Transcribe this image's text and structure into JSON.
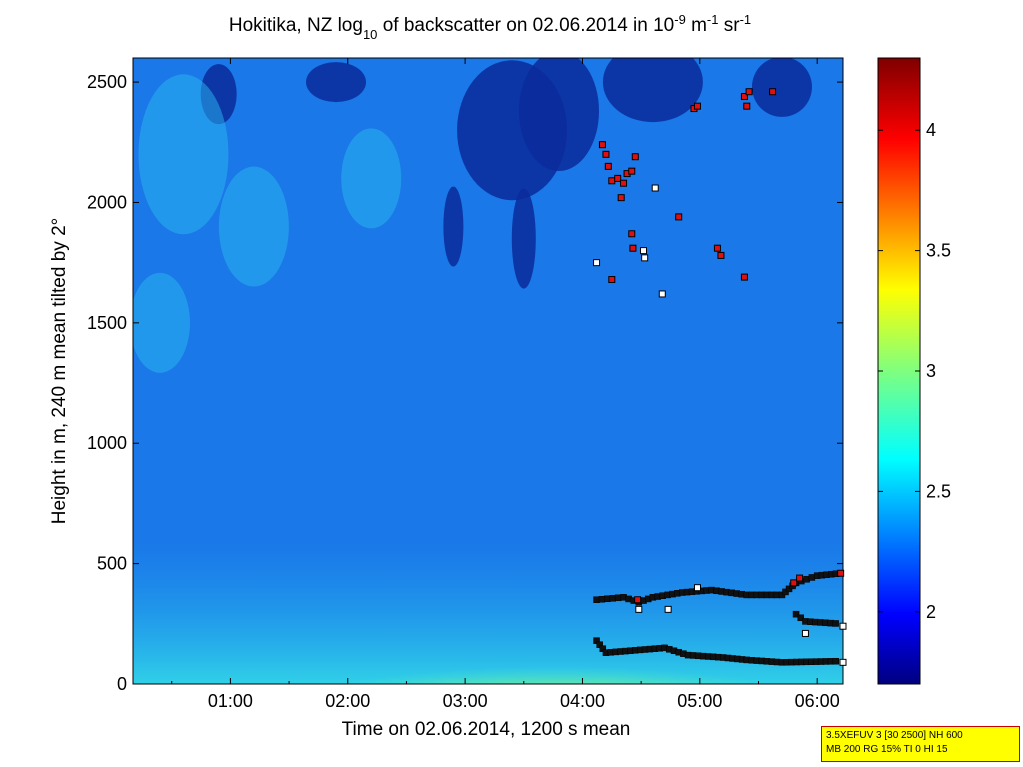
{
  "chart_data": {
    "type": "heatmap",
    "title": {
      "prefix": "Hokitika, NZ log",
      "sub": "10",
      "mid": " of backscatter on 02.06.2014 in 10",
      "sup1": "-9",
      "unit1": " m",
      "sup2": "-1",
      "unit2": " sr",
      "sup3": "-1"
    },
    "xlabel": "Time on 02.06.2014, 1200 s mean",
    "ylabel": "Height in m, 240 m mean tilted by 2°",
    "x_tick_labels": [
      "01:00",
      "02:00",
      "03:00",
      "04:00",
      "05:00",
      "06:00"
    ],
    "x_tick_hours": [
      1,
      2,
      3,
      4,
      5,
      6
    ],
    "xlim_hours": [
      0.17,
      6.22
    ],
    "y_ticks": [
      0,
      500,
      1000,
      1500,
      2000,
      2500
    ],
    "ylim": [
      0,
      2600
    ],
    "colorbar": {
      "ticks": [
        2,
        2.5,
        3,
        3.5,
        4
      ],
      "tick_labels": [
        "2",
        "2.5",
        "3",
        "3.5",
        "4"
      ],
      "range": [
        1.7,
        4.3
      ],
      "colormap": "jet"
    },
    "cloud_points_red": [
      [
        4.17,
        2240
      ],
      [
        4.2,
        2200
      ],
      [
        4.22,
        2150
      ],
      [
        4.25,
        2090
      ],
      [
        4.3,
        2100
      ],
      [
        4.33,
        2020
      ],
      [
        4.35,
        2080
      ],
      [
        4.38,
        2120
      ],
      [
        4.42,
        2130
      ],
      [
        4.45,
        2190
      ],
      [
        4.25,
        1680
      ],
      [
        4.42,
        1870
      ],
      [
        4.43,
        1810
      ],
      [
        4.82,
        1940
      ],
      [
        4.95,
        2390
      ],
      [
        4.98,
        2400
      ],
      [
        5.15,
        1810
      ],
      [
        5.18,
        1780
      ],
      [
        5.38,
        2440
      ],
      [
        5.4,
        2400
      ],
      [
        5.42,
        2460
      ],
      [
        5.38,
        1690
      ],
      [
        5.62,
        2460
      ],
      [
        4.47,
        350
      ],
      [
        5.8,
        420
      ],
      [
        5.85,
        440
      ],
      [
        6.2,
        460
      ]
    ],
    "cloud_points_white": [
      [
        4.12,
        1750
      ],
      [
        4.52,
        1800
      ],
      [
        4.53,
        1770
      ],
      [
        4.62,
        2060
      ],
      [
        4.68,
        1620
      ],
      [
        4.48,
        310
      ],
      [
        4.73,
        310
      ],
      [
        4.98,
        400
      ],
      [
        5.9,
        210
      ],
      [
        6.22,
        240
      ],
      [
        6.22,
        90
      ]
    ],
    "layer_tracks": [
      {
        "name": "upper-layer",
        "points": [
          [
            4.12,
            350
          ],
          [
            4.35,
            360
          ],
          [
            4.48,
            340
          ],
          [
            4.6,
            360
          ],
          [
            4.85,
            380
          ],
          [
            5.1,
            390
          ],
          [
            5.4,
            370
          ],
          [
            5.7,
            370
          ],
          [
            5.82,
            420
          ],
          [
            6.0,
            450
          ],
          [
            6.2,
            460
          ]
        ]
      },
      {
        "name": "lower-layer",
        "points": [
          [
            4.12,
            180
          ],
          [
            4.2,
            130
          ],
          [
            4.45,
            140
          ],
          [
            4.7,
            150
          ],
          [
            4.9,
            120
          ],
          [
            5.2,
            110
          ],
          [
            5.4,
            100
          ],
          [
            5.7,
            90
          ],
          [
            6.2,
            95
          ]
        ]
      },
      {
        "name": "mid-right-layer",
        "points": [
          [
            5.82,
            290
          ],
          [
            5.9,
            260
          ],
          [
            6.2,
            250
          ]
        ]
      }
    ]
  },
  "info_box": {
    "line1": "3.5XEFUV 3 [30 2500] NH 600",
    "line2": "MB 200 RG 15% TI 0 HI 15"
  }
}
